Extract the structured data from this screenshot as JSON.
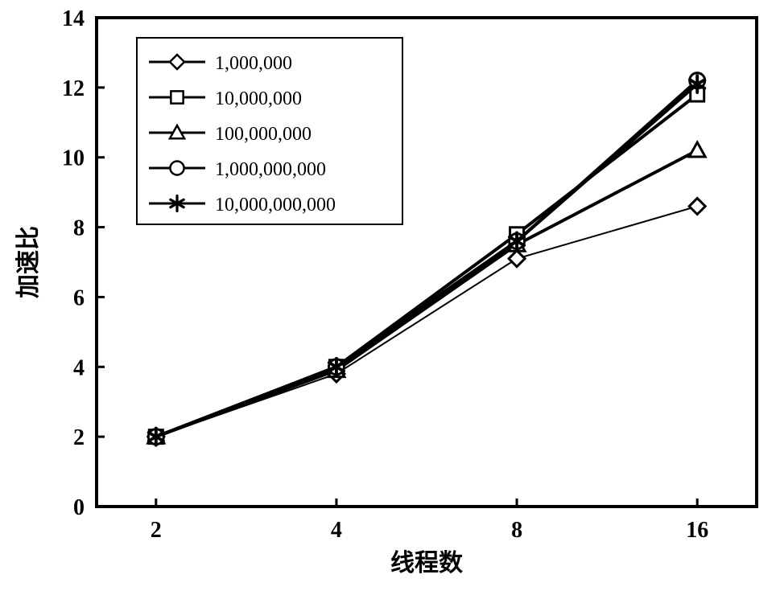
{
  "chart": {
    "type": "line",
    "background_color": "#ffffff",
    "plot_border_color": "#000000",
    "plot_border_width": 4,
    "grid_color": "none",
    "x_axis": {
      "label": "线程数",
      "label_fontsize": 30,
      "label_font_weight": "bold",
      "categories": [
        "2",
        "4",
        "8",
        "16"
      ],
      "tick_fontsize": 28,
      "tick_font_weight": "bold",
      "tick_inside_len": 10,
      "tick_width": 3
    },
    "y_axis": {
      "label": "加速比",
      "label_fontsize": 30,
      "label_font_weight": "bold",
      "ylim": [
        0,
        14
      ],
      "ytick_step": 2,
      "tick_fontsize": 28,
      "tick_font_weight": "bold",
      "tick_inside_len": 10,
      "tick_width": 3
    },
    "legend": {
      "border_color": "#000000",
      "border_width": 2,
      "background": "#ffffff",
      "font_size": 24,
      "font_weight": "normal",
      "position": "upper-left-inside"
    },
    "line_color": "#000000",
    "line_width_main": 4,
    "line_width_thin": 2,
    "marker_size": 20,
    "marker_stroke": "#000000",
    "marker_fill": "#ffffff",
    "text_color": "#000000",
    "series": [
      {
        "name": "1,000,000",
        "marker": "diamond",
        "values": [
          2.0,
          3.8,
          7.1,
          8.6
        ]
      },
      {
        "name": "10,000,000",
        "marker": "square",
        "values": [
          2.0,
          4.0,
          7.8,
          11.8
        ]
      },
      {
        "name": "100,000,000",
        "marker": "triangle",
        "values": [
          2.0,
          3.9,
          7.5,
          10.2
        ]
      },
      {
        "name": "1,000,000,000",
        "marker": "circle",
        "values": [
          2.0,
          4.0,
          7.6,
          12.2
        ]
      },
      {
        "name": "10,000,000,000",
        "marker": "star",
        "values": [
          2.0,
          4.0,
          7.6,
          12.1
        ]
      }
    ]
  }
}
